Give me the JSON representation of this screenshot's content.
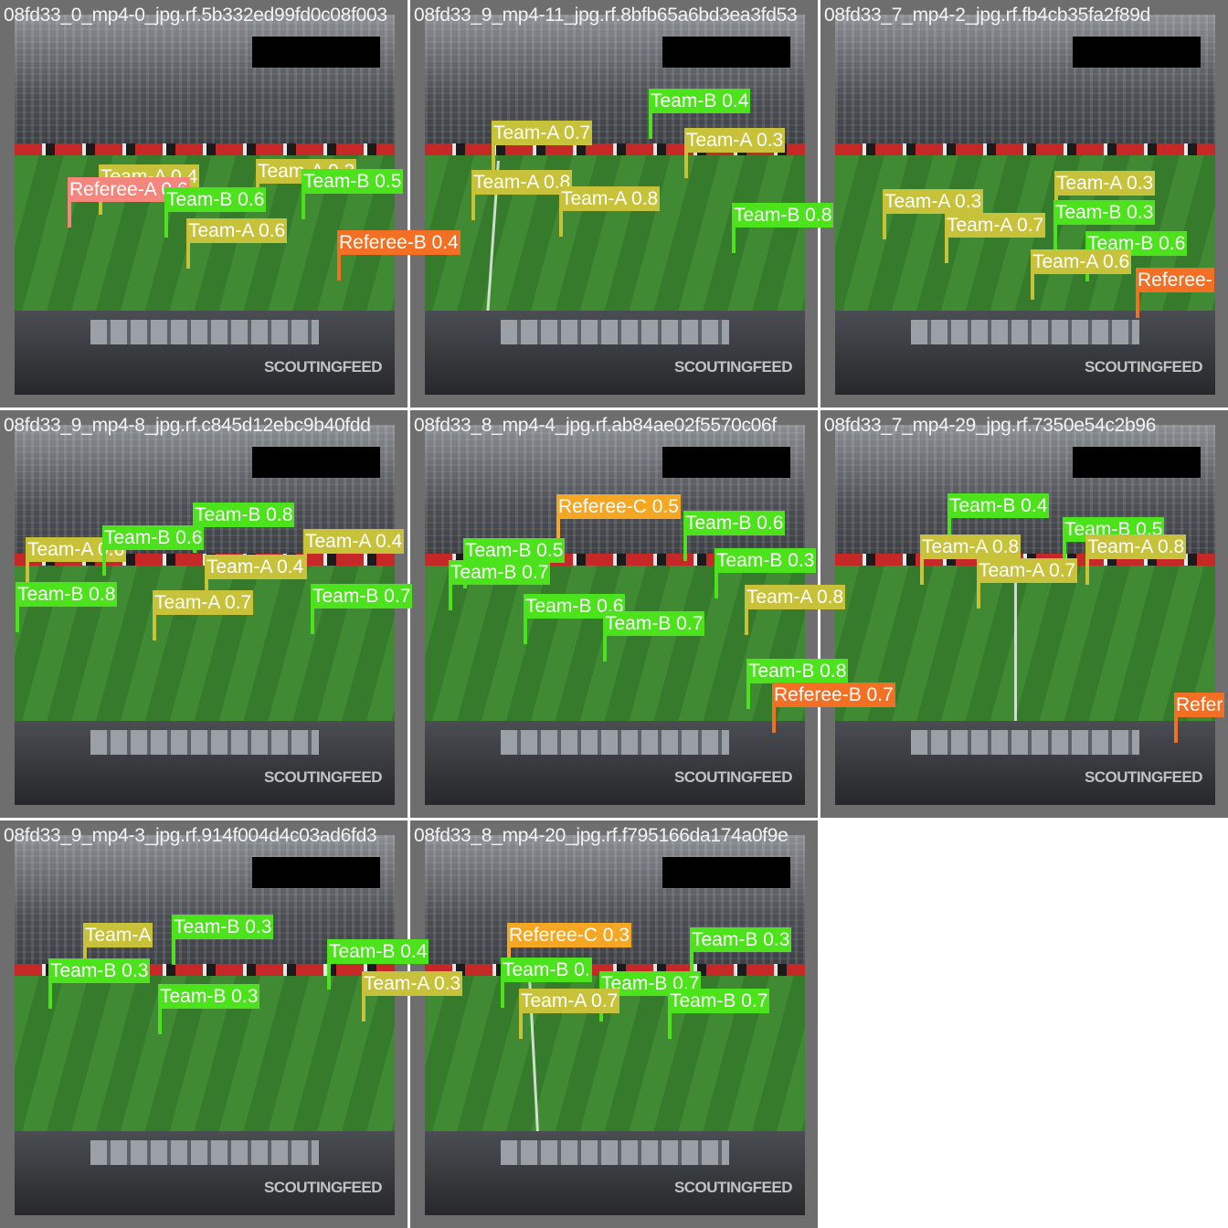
{
  "watermark": "SCOUTINGFEED",
  "class_colors": {
    "Team-A": "#c8c23a",
    "Team-B": "#4ce31c",
    "Referee-A": "#f4867e",
    "Referee-B": "#f26f24",
    "Referee-C": "#f5a623"
  },
  "tiles": [
    {
      "filename": "08fd33_0_mp4-0_jpg.rf.5b332ed99fd0c08f003",
      "detections": [
        {
          "label": "Team-A 0.4",
          "cls": "A"
        },
        {
          "label": "Referee-A 0.6",
          "cls": "R"
        },
        {
          "label": "Team-A 0.3",
          "cls": "A"
        },
        {
          "label": "Team-B 0.6",
          "cls": "B"
        },
        {
          "label": "Team-B 0.5",
          "cls": "B"
        },
        {
          "label": "Team-A 0.6",
          "cls": "A"
        },
        {
          "label": "Referee-B 0.4",
          "cls": "RB"
        }
      ]
    },
    {
      "filename": "08fd33_9_mp4-11_jpg.rf.8bfb65a6bd3ea3fd53",
      "detections": [
        {
          "label": "Team-B 0.4",
          "cls": "B"
        },
        {
          "label": "Team-A 0.7",
          "cls": "A"
        },
        {
          "label": "Team-A 0.3",
          "cls": "A"
        },
        {
          "label": "Team-A 0.8",
          "cls": "A"
        },
        {
          "label": "Team-A 0.8",
          "cls": "A"
        },
        {
          "label": "Team-B 0.8",
          "cls": "B"
        }
      ]
    },
    {
      "filename": "08fd33_7_mp4-2_jpg.rf.fb4cb35fa2f89d",
      "detections": [
        {
          "label": "Team-A 0.3",
          "cls": "A"
        },
        {
          "label": "Team-A 0.3",
          "cls": "A"
        },
        {
          "label": "Team-A 0.7",
          "cls": "A"
        },
        {
          "label": "Team-B 0.3",
          "cls": "B"
        },
        {
          "label": "Team-B 0.6",
          "cls": "B"
        },
        {
          "label": "Team-A 0.6",
          "cls": "A"
        },
        {
          "label": "Referee-",
          "cls": "RB"
        }
      ]
    },
    {
      "filename": "08fd33_9_mp4-8_jpg.rf.c845d12ebc9b40fdd",
      "detections": [
        {
          "label": "Team-B 0.8",
          "cls": "B"
        },
        {
          "label": "Team-A 0.6",
          "cls": "A"
        },
        {
          "label": "Team-B 0.6",
          "cls": "B"
        },
        {
          "label": "Team-A 0.4",
          "cls": "A"
        },
        {
          "label": "Team-A 0.4",
          "cls": "A"
        },
        {
          "label": "Team-B 0.8",
          "cls": "B"
        },
        {
          "label": "Team-A 0.7",
          "cls": "A"
        },
        {
          "label": "Team-B 0.7",
          "cls": "B"
        }
      ]
    },
    {
      "filename": "08fd33_8_mp4-4_jpg.rf.ab84ae02f5570c06f",
      "detections": [
        {
          "label": "Referee-C 0.5",
          "cls": "RC"
        },
        {
          "label": "Team-B 0.6",
          "cls": "B"
        },
        {
          "label": "Team-B 0.5",
          "cls": "B"
        },
        {
          "label": "Team-B 0.7",
          "cls": "B"
        },
        {
          "label": "Team-B 0.3",
          "cls": "B"
        },
        {
          "label": "Team-B 0.6",
          "cls": "B"
        },
        {
          "label": "Team-A 0.8",
          "cls": "A"
        },
        {
          "label": "Team-B 0.7",
          "cls": "B"
        },
        {
          "label": "Team-B 0.8",
          "cls": "B"
        },
        {
          "label": "Referee-B 0.7",
          "cls": "RB"
        }
      ]
    },
    {
      "filename": "08fd33_7_mp4-29_jpg.rf.7350e54c2b96",
      "detections": [
        {
          "label": "Team-B 0.4",
          "cls": "B"
        },
        {
          "label": "Team-B 0.5",
          "cls": "B"
        },
        {
          "label": "Team-A 0.8",
          "cls": "A"
        },
        {
          "label": "Team-A 0.8",
          "cls": "A"
        },
        {
          "label": "Team-A 0.7",
          "cls": "A"
        },
        {
          "label": "Refer",
          "cls": "RB"
        }
      ]
    },
    {
      "filename": "08fd33_9_mp4-3_jpg.rf.914f004d4c03ad6fd3",
      "detections": [
        {
          "label": "Team-B 0.3",
          "cls": "B"
        },
        {
          "label": "Team-A",
          "cls": "A"
        },
        {
          "label": "Team-B 0.3",
          "cls": "B"
        },
        {
          "label": "Team-B 0.4",
          "cls": "B"
        },
        {
          "label": "Team-A 0.3",
          "cls": "A"
        },
        {
          "label": "Team-B 0.3",
          "cls": "B"
        }
      ]
    },
    {
      "filename": "08fd33_8_mp4-20_jpg.rf.f795166da174a0f9e",
      "detections": [
        {
          "label": "Referee-C 0.3",
          "cls": "RC"
        },
        {
          "label": "Team-B 0.3",
          "cls": "B"
        },
        {
          "label": "Team-B 0.",
          "cls": "B"
        },
        {
          "label": "Team-B 0.7",
          "cls": "B"
        },
        {
          "label": "Team-A 0.7",
          "cls": "A"
        },
        {
          "label": "Team-B 0.7",
          "cls": "B"
        }
      ]
    }
  ]
}
